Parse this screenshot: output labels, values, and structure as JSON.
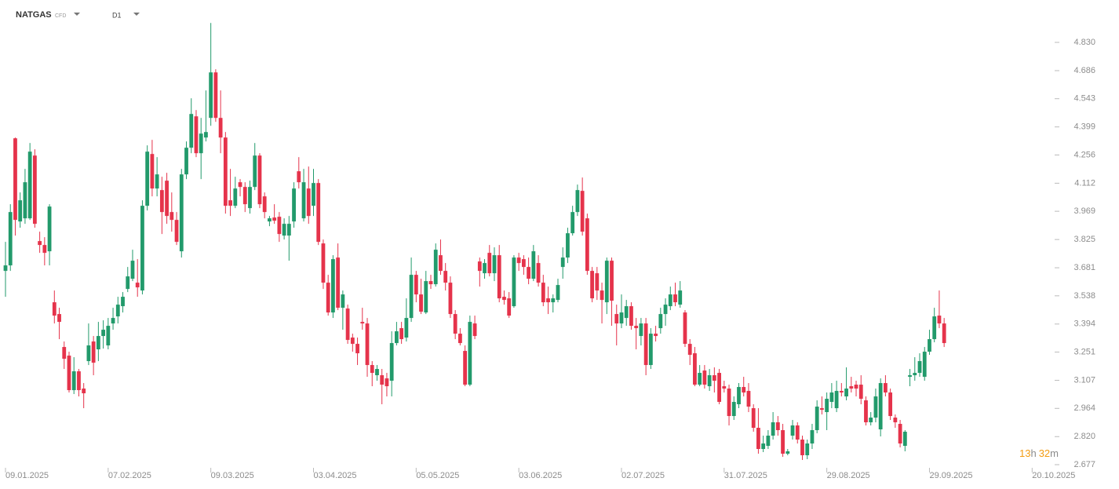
{
  "chart_data": {
    "type": "candlestick",
    "symbol": "NATGAS",
    "instrument": "CFD",
    "timeframe": "D1",
    "countdown": [
      "13",
      "h",
      "32",
      "m"
    ],
    "up_color": "#229a6b",
    "down_color": "#e5334b",
    "ylim": [
      2.677,
      4.83
    ],
    "yticks": [
      {
        "value": 4.83,
        "label": "4.830"
      },
      {
        "value": 4.686,
        "label": "4.686"
      },
      {
        "value": 4.543,
        "label": "4.543"
      },
      {
        "value": 4.399,
        "label": "4.399"
      },
      {
        "value": 4.256,
        "label": "4.256"
      },
      {
        "value": 4.112,
        "label": "4.112"
      },
      {
        "value": 3.969,
        "label": "3.969"
      },
      {
        "value": 3.825,
        "label": "3.825"
      },
      {
        "value": 3.681,
        "label": "3.681"
      },
      {
        "value": 3.538,
        "label": "3.538"
      },
      {
        "value": 3.394,
        "label": "3.394"
      },
      {
        "value": 3.251,
        "label": "3.251"
      },
      {
        "value": 3.107,
        "label": "3.107"
      },
      {
        "value": 2.964,
        "label": "2.964"
      },
      {
        "value": 2.82,
        "label": "2.820"
      },
      {
        "value": 2.677,
        "label": "2.677"
      }
    ],
    "xticks": [
      {
        "value": 0,
        "label": "09.01.2025"
      },
      {
        "value": 21,
        "label": "07.02.2025"
      },
      {
        "value": 42,
        "label": "09.03.2025"
      },
      {
        "value": 63,
        "label": "03.04.2025"
      },
      {
        "value": 84,
        "label": "05.05.2025"
      },
      {
        "value": 105,
        "label": "03.06.2025"
      },
      {
        "value": 126,
        "label": "02.07.2025"
      },
      {
        "value": 147,
        "label": "31.07.2025"
      },
      {
        "value": 168,
        "label": "29.08.2025"
      },
      {
        "value": 189,
        "label": "29.09.2025"
      },
      {
        "value": 210,
        "label": "20.10.2025"
      }
    ],
    "open": [
      3.665,
      3.693,
      4.341,
      3.917,
      3.933,
      3.933,
      4.253,
      3.817,
      3.797,
      3.765,
      3.505,
      3.445,
      3.277,
      3.233,
      3.057,
      3.153,
      3.065,
      3.205,
      3.305,
      3.265,
      3.333,
      3.285,
      3.397,
      3.433,
      3.485,
      3.573,
      3.625,
      3.605,
      3.565,
      3.997,
      4.261,
      4.085,
      4.077,
      4.125,
      3.965,
      3.925,
      3.765,
      4.157,
      4.293,
      4.453,
      4.265,
      4.345,
      4.445,
      4.677,
      4.445,
      4.345,
      4.025,
      3.997,
      4.117,
      4.093,
      3.985,
      4.093,
      4.253,
      4.045,
      3.917,
      3.937,
      3.941,
      3.845,
      3.845,
      3.917,
      4.173,
      3.933,
      4.085,
      3.997,
      4.113,
      3.805,
      3.605,
      3.453,
      3.733,
      3.477,
      3.473,
      3.325,
      3.293,
      3.405,
      3.397,
      3.185,
      3.133,
      3.133,
      3.117,
      3.105,
      3.297,
      3.373,
      3.325,
      3.425,
      3.645,
      3.545,
      3.453,
      3.613,
      3.597,
      3.745,
      3.665,
      3.605,
      3.445,
      3.345,
      3.257,
      3.085,
      3.397,
      3.713,
      3.653,
      3.757,
      3.653,
      3.745,
      3.533,
      3.525,
      3.485,
      3.733,
      3.725,
      3.685,
      3.625,
      3.705,
      3.605,
      3.525,
      3.505,
      3.517,
      3.685,
      3.733,
      3.857,
      3.965,
      4.073,
      3.933,
      3.665,
      3.653,
      3.565,
      3.505,
      3.717,
      3.445,
      3.397,
      3.425,
      3.485,
      3.385,
      3.333,
      3.397,
      3.185,
      3.345,
      3.373,
      3.445,
      3.485,
      3.545,
      3.493,
      3.453,
      3.293,
      3.245,
      3.085,
      3.157,
      3.077,
      3.133,
      3.145,
      3.077,
      3.065,
      2.925,
      2.985,
      3.073,
      3.053,
      2.965,
      2.865,
      2.757,
      2.773,
      2.825,
      2.893,
      2.853,
      2.733,
      2.825,
      2.877,
      2.805,
      2.725,
      2.785,
      2.853,
      2.965,
      2.945,
      2.997,
      2.965,
      3.053,
      3.025,
      3.077,
      3.085,
      3.085,
      3.005,
      2.893,
      2.917,
      2.857,
      3.093,
      3.045,
      2.917,
      2.885,
      2.773,
      3.125,
      3.133,
      3.145,
      3.125,
      3.253,
      3.317,
      3.437,
      3.397
    ],
    "high": [
      3.813,
      4.005,
      4.345,
      4.065,
      4.185,
      4.317,
      4.285,
      3.865,
      3.837,
      4.005,
      3.565,
      3.477,
      3.305,
      3.253,
      3.225,
      3.165,
      3.093,
      3.397,
      3.333,
      3.405,
      3.413,
      3.425,
      3.477,
      3.533,
      3.557,
      3.685,
      3.773,
      3.725,
      4.025,
      4.305,
      4.333,
      4.245,
      4.145,
      4.165,
      4.065,
      3.965,
      4.185,
      4.325,
      4.545,
      4.485,
      4.445,
      4.585,
      4.929,
      4.693,
      4.585,
      4.373,
      4.185,
      4.145,
      4.133,
      4.117,
      4.125,
      4.317,
      4.265,
      4.065,
      3.945,
      4.005,
      3.965,
      3.933,
      3.945,
      4.117,
      4.245,
      4.185,
      4.197,
      4.185,
      4.133,
      3.825,
      3.645,
      3.745,
      3.805,
      3.565,
      3.493,
      3.345,
      3.325,
      3.477,
      3.425,
      3.205,
      3.185,
      3.165,
      3.145,
      3.357,
      3.405,
      3.405,
      3.525,
      3.733,
      3.665,
      3.625,
      3.665,
      3.645,
      3.805,
      3.825,
      3.705,
      3.637,
      3.465,
      3.373,
      3.285,
      3.437,
      3.437,
      3.733,
      3.725,
      3.797,
      3.785,
      3.797,
      3.565,
      3.557,
      3.745,
      3.757,
      3.745,
      3.733,
      3.797,
      3.745,
      3.645,
      3.585,
      3.545,
      3.625,
      3.785,
      3.885,
      3.997,
      4.105,
      4.141,
      3.957,
      3.685,
      3.685,
      3.605,
      3.733,
      3.733,
      3.493,
      3.545,
      3.517,
      3.505,
      3.425,
      3.425,
      3.425,
      3.373,
      3.385,
      3.477,
      3.525,
      3.585,
      3.605,
      3.613,
      3.465,
      3.317,
      3.277,
      3.185,
      3.185,
      3.165,
      3.173,
      3.165,
      3.105,
      3.085,
      3.025,
      3.093,
      3.125,
      3.093,
      2.985,
      2.965,
      2.825,
      2.853,
      2.945,
      2.925,
      2.885,
      2.757,
      2.905,
      2.893,
      2.825,
      2.805,
      2.885,
      3.005,
      3.025,
      3.045,
      3.093,
      3.105,
      3.093,
      3.173,
      3.125,
      3.105,
      3.133,
      3.025,
      2.945,
      3.065,
      3.117,
      3.133,
      3.065,
      2.933,
      2.905,
      2.853,
      3.165,
      3.225,
      3.245,
      3.277,
      3.365,
      3.477,
      3.565,
      3.425
    ],
    "low": [
      3.533,
      3.665,
      3.845,
      3.885,
      3.905,
      3.925,
      3.885,
      3.757,
      3.693,
      3.693,
      3.397,
      3.317,
      3.165,
      3.045,
      3.037,
      3.025,
      2.965,
      3.185,
      3.133,
      3.205,
      3.269,
      3.265,
      3.365,
      3.397,
      3.453,
      3.557,
      3.613,
      3.533,
      3.545,
      3.973,
      4.045,
      4.045,
      3.853,
      3.905,
      3.865,
      3.797,
      3.733,
      4.133,
      4.265,
      4.245,
      4.133,
      4.325,
      4.405,
      4.425,
      4.265,
      3.957,
      3.945,
      3.985,
      4.045,
      3.965,
      3.957,
      4.077,
      3.985,
      3.933,
      3.893,
      3.905,
      3.813,
      3.825,
      3.717,
      3.885,
      4.085,
      3.917,
      3.905,
      3.945,
      3.797,
      3.573,
      3.437,
      3.425,
      3.465,
      3.365,
      3.293,
      3.253,
      3.185,
      3.365,
      3.125,
      3.077,
      3.105,
      2.985,
      3.025,
      3.025,
      3.285,
      3.293,
      3.305,
      3.405,
      3.505,
      3.445,
      3.445,
      3.573,
      3.585,
      3.645,
      3.565,
      3.425,
      3.317,
      3.285,
      3.077,
      3.077,
      3.317,
      3.585,
      3.625,
      3.637,
      3.613,
      3.505,
      3.493,
      3.425,
      3.477,
      3.665,
      3.645,
      3.597,
      3.613,
      3.585,
      3.485,
      3.445,
      3.453,
      3.505,
      3.625,
      3.705,
      3.845,
      3.945,
      3.845,
      3.645,
      3.505,
      3.517,
      3.397,
      3.445,
      3.385,
      3.285,
      3.373,
      3.385,
      3.365,
      3.265,
      3.285,
      3.133,
      3.165,
      3.305,
      3.345,
      3.385,
      3.465,
      3.485,
      3.477,
      3.277,
      3.185,
      3.077,
      3.077,
      3.065,
      3.053,
      3.045,
      2.985,
      3.045,
      2.877,
      2.905,
      2.965,
      3.025,
      2.945,
      2.845,
      2.733,
      2.741,
      2.757,
      2.805,
      2.825,
      2.717,
      2.725,
      2.805,
      2.785,
      2.701,
      2.705,
      2.757,
      2.837,
      2.933,
      2.853,
      2.965,
      2.945,
      3.025,
      3.005,
      3.045,
      3.025,
      2.985,
      2.877,
      2.877,
      2.893,
      2.821,
      3.025,
      2.905,
      2.865,
      2.765,
      2.745,
      3.077,
      3.105,
      3.125,
      3.105,
      3.237,
      3.301,
      3.373,
      3.277
    ],
    "close": [
      3.693,
      3.965,
      3.925,
      4.025,
      4.117,
      4.273,
      3.905,
      3.797,
      3.757,
      3.993,
      3.437,
      3.405,
      3.217,
      3.057,
      3.153,
      3.057,
      3.041,
      3.285,
      3.197,
      3.333,
      3.365,
      3.385,
      3.425,
      3.493,
      3.533,
      3.637,
      3.717,
      3.581,
      3.997,
      4.273,
      4.085,
      4.157,
      3.965,
      3.945,
      3.925,
      3.813,
      4.157,
      4.293,
      4.465,
      4.265,
      4.365,
      4.373,
      4.677,
      4.445,
      4.345,
      3.997,
      3.997,
      4.085,
      4.093,
      4.005,
      4.093,
      4.253,
      4.005,
      3.965,
      3.933,
      3.921,
      3.853,
      3.905,
      3.905,
      4.085,
      4.117,
      4.117,
      3.945,
      4.113,
      3.813,
      3.605,
      3.453,
      3.725,
      3.477,
      3.545,
      3.313,
      3.293,
      3.245,
      3.397,
      3.185,
      3.145,
      3.165,
      3.085,
      3.077,
      3.297,
      3.357,
      3.317,
      3.425,
      3.645,
      3.545,
      3.457,
      3.613,
      3.597,
      3.773,
      3.665,
      3.605,
      3.445,
      3.345,
      3.297,
      3.085,
      3.405,
      3.333,
      3.665,
      3.705,
      3.653,
      3.745,
      3.525,
      3.517,
      3.437,
      3.733,
      3.705,
      3.685,
      3.625,
      3.765,
      3.605,
      3.505,
      3.505,
      3.525,
      3.593,
      3.733,
      3.857,
      3.965,
      4.077,
      3.865,
      3.665,
      3.525,
      3.565,
      3.517,
      3.717,
      3.513,
      3.397,
      3.453,
      3.485,
      3.385,
      3.373,
      3.397,
      3.185,
      3.345,
      3.333,
      3.445,
      3.493,
      3.545,
      3.505,
      3.565,
      3.293,
      3.237,
      3.085,
      3.145,
      3.085,
      3.133,
      3.105,
      2.997,
      3.065,
      2.925,
      2.997,
      3.073,
      3.045,
      2.973,
      2.865,
      2.757,
      2.785,
      2.825,
      2.893,
      2.853,
      2.733,
      2.745,
      2.877,
      2.805,
      2.725,
      2.785,
      2.853,
      2.973,
      2.957,
      3.013,
      3.045,
      3.053,
      3.045,
      3.065,
      3.065,
      3.065,
      3.013,
      2.893,
      2.917,
      3.025,
      3.093,
      3.045,
      2.925,
      2.893,
      2.785,
      2.845,
      3.133,
      3.145,
      3.205,
      3.253,
      3.317,
      3.433,
      3.397,
      3.297
    ]
  }
}
